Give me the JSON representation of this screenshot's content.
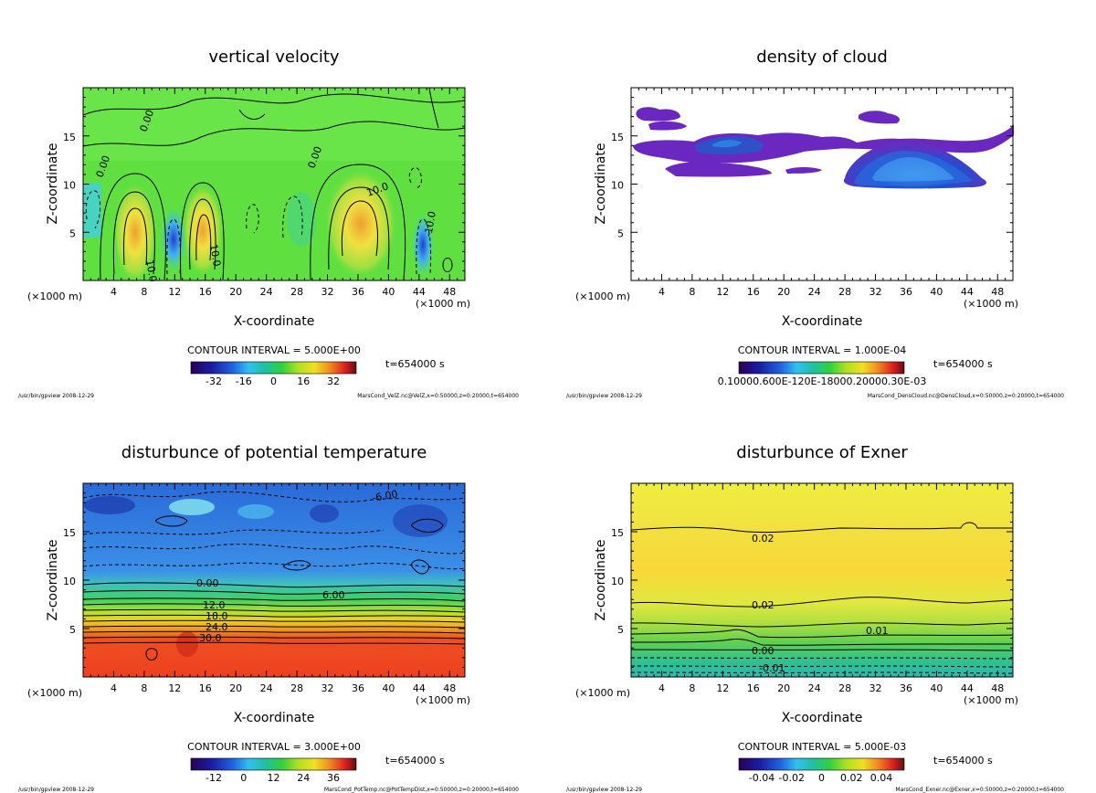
{
  "chart_data": [
    {
      "type": "heatmap",
      "title": "vertical velocity",
      "xlabel": "X-coordinate",
      "ylabel": "Z-coordinate",
      "x_unit_left": "(×1000 m)",
      "x_unit_right": "(×1000 m)",
      "xlim": [
        0,
        50
      ],
      "ylim": [
        0,
        20
      ],
      "xticks": [
        "4",
        "8",
        "12",
        "16",
        "20",
        "24",
        "28",
        "32",
        "36",
        "40",
        "44",
        "48"
      ],
      "yticks": [
        "5",
        "10",
        "15"
      ],
      "contour_interval": "CONTOUR INTERVAL = 5.000E+00",
      "time": "t=654000 s",
      "colorbar_ticks": [
        "-32",
        "-16",
        "0",
        "16",
        "32"
      ],
      "contour_labels": [
        "0.00",
        "0.00",
        "0.00",
        "10.0",
        "10.0",
        "10.0",
        "-10.0"
      ],
      "footer_left": "/usr/bin/gpview  2008-12-29",
      "footer_right": "MarsCond_VelZ.nc@VelZ,x=0:50000,z=0:20000,t=654000"
    },
    {
      "type": "heatmap",
      "title": "density of cloud",
      "xlabel": "X-coordinate",
      "ylabel": "Z-coordinate",
      "x_unit_left": "(×1000 m)",
      "x_unit_right": "(×1000 m)",
      "xlim": [
        0,
        50
      ],
      "ylim": [
        0,
        20
      ],
      "xticks": [
        "4",
        "8",
        "12",
        "16",
        "20",
        "24",
        "28",
        "32",
        "36",
        "40",
        "44",
        "48"
      ],
      "yticks": [
        "5",
        "10",
        "15"
      ],
      "contour_interval": "CONTOUR INTERVAL = 1.000E-04",
      "time": "t=654000 s",
      "colorbar_ticks_overlap": "0.10000.600E-120E-18000.20000.30E-03",
      "footer_left": "/usr/bin/gpview  2008-12-29",
      "footer_right": "MarsCond_DensCloud.nc@DensCloud,x=0:50000,z=0:20000,t=654000"
    },
    {
      "type": "heatmap",
      "title": "disturbunce of potential temperature",
      "xlabel": "X-coordinate",
      "ylabel": "Z-coordinate",
      "x_unit_left": "(×1000 m)",
      "x_unit_right": "(×1000 m)",
      "xlim": [
        0,
        50
      ],
      "ylim": [
        0,
        20
      ],
      "xticks": [
        "4",
        "8",
        "12",
        "16",
        "20",
        "24",
        "28",
        "32",
        "36",
        "40",
        "44",
        "48"
      ],
      "yticks": [
        "5",
        "10",
        "15"
      ],
      "contour_interval": "CONTOUR INTERVAL = 3.000E+00",
      "time": "t=654000 s",
      "colorbar_ticks": [
        "-12",
        "0",
        "12",
        "24",
        "36"
      ],
      "contour_labels": [
        "-6.00",
        "0.00",
        "6.00",
        "12.0",
        "18.0",
        "24.0",
        "30.0"
      ],
      "footer_left": "/usr/bin/gpview  2008-12-29",
      "footer_right": "MarsCond_PotTemp.nc@PotTempDist,x=0:50000,z=0:20000,t=654000"
    },
    {
      "type": "heatmap",
      "title": "disturbunce of Exner",
      "xlabel": "X-coordinate",
      "ylabel": "Z-coordinate",
      "x_unit_left": "(×1000 m)",
      "x_unit_right": "(×1000 m)",
      "xlim": [
        0,
        50
      ],
      "ylim": [
        0,
        20
      ],
      "xticks": [
        "4",
        "8",
        "12",
        "16",
        "20",
        "24",
        "28",
        "32",
        "36",
        "40",
        "44",
        "48"
      ],
      "yticks": [
        "5",
        "10",
        "15"
      ],
      "contour_interval": "CONTOUR INTERVAL = 5.000E-03",
      "time": "t=654000 s",
      "colorbar_ticks": [
        "-0.04",
        "-0.02",
        "0",
        "0.02",
        "0.04"
      ],
      "contour_labels": [
        "0.02",
        "0.02",
        "0.01",
        "0.00",
        "-0.01"
      ],
      "footer_left": "/usr/bin/gpview  2008-12-29",
      "footer_right": "MarsCond_Exner.nc@Exner,x=0:50000,z=0:20000,t=654000"
    }
  ]
}
